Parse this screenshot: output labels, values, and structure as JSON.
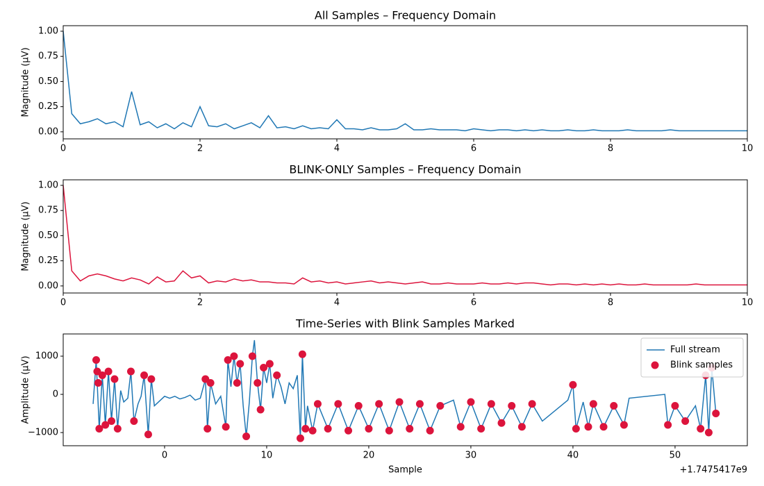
{
  "chart_data": [
    {
      "type": "line",
      "title": "All Samples – Frequency Domain",
      "ylabel": "Magnitude (µV)",
      "color": "#1f77b4",
      "xlim": [
        0,
        10
      ],
      "ylim": [
        -0.07,
        1.055
      ],
      "xticks": [
        0,
        2,
        4,
        6,
        8,
        10
      ],
      "yticks": [
        {
          "value": 0,
          "label": "0.00"
        },
        {
          "value": 0.25,
          "label": "0.25"
        },
        {
          "value": 0.5,
          "label": "0.50"
        },
        {
          "value": 0.75,
          "label": "0.75"
        },
        {
          "value": 1,
          "label": "1.00"
        }
      ],
      "x": [
        0,
        0.125,
        0.25,
        0.375,
        0.5,
        0.625,
        0.75,
        0.875,
        1,
        1.125,
        1.25,
        1.375,
        1.5,
        1.625,
        1.75,
        1.875,
        2,
        2.125,
        2.25,
        2.375,
        2.5,
        2.625,
        2.75,
        2.875,
        3,
        3.125,
        3.25,
        3.375,
        3.5,
        3.625,
        3.75,
        3.875,
        4,
        4.125,
        4.25,
        4.375,
        4.5,
        4.625,
        4.75,
        4.875,
        5,
        5.125,
        5.25,
        5.375,
        5.5,
        5.625,
        5.75,
        5.875,
        6,
        6.125,
        6.25,
        6.375,
        6.5,
        6.625,
        6.75,
        6.875,
        7,
        7.125,
        7.25,
        7.375,
        7.5,
        7.625,
        7.75,
        7.875,
        8,
        8.125,
        8.25,
        8.375,
        8.5,
        8.625,
        8.75,
        8.875,
        9,
        9.125,
        9.25,
        9.375,
        9.5,
        9.625,
        9.75,
        9.875,
        10
      ],
      "values": [
        1.0,
        0.18,
        0.08,
        0.1,
        0.13,
        0.08,
        0.1,
        0.05,
        0.4,
        0.07,
        0.1,
        0.04,
        0.08,
        0.03,
        0.09,
        0.05,
        0.25,
        0.06,
        0.05,
        0.08,
        0.03,
        0.06,
        0.09,
        0.04,
        0.16,
        0.04,
        0.05,
        0.03,
        0.06,
        0.03,
        0.04,
        0.03,
        0.12,
        0.03,
        0.03,
        0.02,
        0.04,
        0.02,
        0.02,
        0.03,
        0.08,
        0.02,
        0.02,
        0.03,
        0.02,
        0.02,
        0.02,
        0.01,
        0.03,
        0.02,
        0.01,
        0.02,
        0.02,
        0.01,
        0.02,
        0.01,
        0.02,
        0.01,
        0.01,
        0.02,
        0.01,
        0.01,
        0.02,
        0.01,
        0.01,
        0.01,
        0.02,
        0.01,
        0.01,
        0.01,
        0.01,
        0.02,
        0.01,
        0.01,
        0.01,
        0.01,
        0.01,
        0.01,
        0.01,
        0.01,
        0.01
      ]
    },
    {
      "type": "line",
      "title": "BLINK-ONLY Samples – Frequency Domain",
      "ylabel": "Magnitude (µV)",
      "color": "#dc143c",
      "xlim": [
        0,
        10
      ],
      "ylim": [
        -0.07,
        1.055
      ],
      "xticks": [
        0,
        2,
        4,
        6,
        8,
        10
      ],
      "yticks": [
        {
          "value": 0,
          "label": "0.00"
        },
        {
          "value": 0.25,
          "label": "0.25"
        },
        {
          "value": 0.5,
          "label": "0.50"
        },
        {
          "value": 0.75,
          "label": "0.75"
        },
        {
          "value": 1,
          "label": "1.00"
        }
      ],
      "x": [
        0,
        0.125,
        0.25,
        0.375,
        0.5,
        0.625,
        0.75,
        0.875,
        1,
        1.125,
        1.25,
        1.375,
        1.5,
        1.625,
        1.75,
        1.875,
        2,
        2.125,
        2.25,
        2.375,
        2.5,
        2.625,
        2.75,
        2.875,
        3,
        3.125,
        3.25,
        3.375,
        3.5,
        3.625,
        3.75,
        3.875,
        4,
        4.125,
        4.25,
        4.375,
        4.5,
        4.625,
        4.75,
        4.875,
        5,
        5.125,
        5.25,
        5.375,
        5.5,
        5.625,
        5.75,
        5.875,
        6,
        6.125,
        6.25,
        6.375,
        6.5,
        6.625,
        6.75,
        6.875,
        7,
        7.125,
        7.25,
        7.375,
        7.5,
        7.625,
        7.75,
        7.875,
        8,
        8.125,
        8.25,
        8.375,
        8.5,
        8.625,
        8.75,
        8.875,
        9,
        9.125,
        9.25,
        9.375,
        9.5,
        9.625,
        9.75,
        9.875,
        10
      ],
      "values": [
        1.0,
        0.15,
        0.05,
        0.1,
        0.12,
        0.1,
        0.07,
        0.05,
        0.08,
        0.06,
        0.02,
        0.09,
        0.04,
        0.05,
        0.15,
        0.08,
        0.1,
        0.03,
        0.05,
        0.04,
        0.07,
        0.05,
        0.06,
        0.04,
        0.04,
        0.03,
        0.03,
        0.02,
        0.08,
        0.04,
        0.05,
        0.03,
        0.04,
        0.02,
        0.03,
        0.04,
        0.05,
        0.03,
        0.04,
        0.03,
        0.02,
        0.03,
        0.04,
        0.02,
        0.02,
        0.03,
        0.02,
        0.02,
        0.02,
        0.03,
        0.02,
        0.02,
        0.03,
        0.02,
        0.03,
        0.03,
        0.02,
        0.01,
        0.02,
        0.02,
        0.01,
        0.02,
        0.01,
        0.02,
        0.01,
        0.02,
        0.01,
        0.01,
        0.02,
        0.01,
        0.01,
        0.01,
        0.01,
        0.01,
        0.02,
        0.01,
        0.01,
        0.01,
        0.01,
        0.01,
        0.01
      ]
    },
    {
      "type": "line",
      "title": "Time-Series with Blink Samples Marked",
      "xlabel": "Sample",
      "ylabel": "Amplitude (µV)",
      "x_offset_label": "+1.7475417e9",
      "xlim": [
        -9.93,
        57.08
      ],
      "ylim": [
        -1345,
        1582
      ],
      "xticks": [
        0,
        10,
        20,
        30,
        40,
        50
      ],
      "yticks": [
        {
          "value": -1000,
          "label": "−1000"
        },
        0,
        1000
      ],
      "legend": "upper right",
      "series": [
        {
          "name": "Full stream",
          "type": "line",
          "color": "#1f77b4",
          "x": [
            -7,
            -6.7,
            -6.4,
            -6.1,
            -5.8,
            -5.5,
            -5.2,
            -4.9,
            -4.6,
            -4.3,
            -4,
            -3.6,
            -3.3,
            -3,
            -2.6,
            -2.3,
            -2,
            -1.6,
            -1.3,
            -1,
            0,
            0.5,
            1,
            1.5,
            2,
            2.5,
            3,
            3.5,
            4,
            4.2,
            4.5,
            5,
            5.5,
            6,
            6.2,
            6.5,
            6.8,
            7.1,
            7.4,
            7.7,
            8,
            8.3,
            8.6,
            8.8,
            9.1,
            9.4,
            9.7,
            10,
            10.3,
            10.6,
            11,
            11.4,
            11.8,
            12.2,
            12.6,
            13,
            13.3,
            13.5,
            13.8,
            14,
            14.5,
            15,
            16,
            17,
            18,
            19,
            20,
            21,
            22,
            23,
            24,
            25,
            26,
            27,
            28.3,
            29,
            30,
            31,
            32,
            33,
            34,
            35,
            36,
            37,
            39.5,
            40,
            40.3,
            41,
            41.5,
            42,
            43,
            44,
            45,
            45.5,
            49,
            49.3,
            50,
            51,
            52,
            52.5,
            53,
            53.3,
            53.6,
            54
          ],
          "values": [
            -250,
            900,
            -900,
            500,
            -800,
            600,
            -700,
            400,
            -900,
            100,
            -200,
            -100,
            600,
            -700,
            -250,
            -50,
            500,
            -1050,
            400,
            -300,
            -50,
            -100,
            -50,
            -120,
            -80,
            -20,
            -150,
            -100,
            400,
            -900,
            300,
            -250,
            -50,
            -850,
            900,
            200,
            1000,
            300,
            800,
            -300,
            -1100,
            -200,
            1000,
            1420,
            300,
            -400,
            700,
            300,
            800,
            -100,
            500,
            200,
            -250,
            300,
            150,
            500,
            -1150,
            1050,
            -900,
            -300,
            -950,
            -250,
            -900,
            -250,
            -950,
            -300,
            -900,
            -250,
            -950,
            -200,
            -900,
            -250,
            -950,
            -300,
            -150,
            -850,
            -200,
            -900,
            -250,
            -750,
            -300,
            -850,
            -250,
            -700,
            -150,
            250,
            -900,
            -200,
            -850,
            -250,
            -850,
            -300,
            -800,
            -100,
            0,
            -800,
            -300,
            -700,
            -300,
            -900,
            500,
            -1000,
            700,
            -500
          ]
        },
        {
          "name": "Blink samples",
          "type": "scatter",
          "color": "#dc143c",
          "x": [
            -6.7,
            -6.6,
            -6.5,
            -6.4,
            -6.1,
            -5.8,
            -5.5,
            -5.2,
            -4.9,
            -4.6,
            -3.3,
            -3,
            -2,
            -1.6,
            -1.3,
            4,
            4.2,
            4.5,
            6,
            6.2,
            6.8,
            7.1,
            7.4,
            8,
            8.6,
            9.1,
            9.4,
            9.7,
            10.3,
            11,
            13.3,
            13.5,
            13.8,
            14.5,
            15,
            16,
            17,
            18,
            19,
            20,
            21,
            22,
            23,
            24,
            25,
            26,
            27,
            29,
            30,
            31,
            32,
            33,
            34,
            35,
            36,
            40,
            40.3,
            41.5,
            42,
            43,
            44,
            45,
            49.3,
            50,
            51,
            52.5,
            53,
            53.3,
            53.6,
            54
          ],
          "values": [
            900,
            600,
            300,
            -900,
            500,
            -800,
            600,
            -700,
            400,
            -900,
            600,
            -700,
            500,
            -1050,
            400,
            400,
            -900,
            300,
            -850,
            900,
            1000,
            300,
            800,
            -1100,
            1000,
            300,
            -400,
            700,
            800,
            500,
            -1150,
            1050,
            -900,
            -950,
            -250,
            -900,
            -250,
            -950,
            -300,
            -900,
            -250,
            -950,
            -200,
            -900,
            -250,
            -950,
            -300,
            -850,
            -200,
            -900,
            -250,
            -750,
            -300,
            -850,
            -250,
            250,
            -900,
            -850,
            -250,
            -850,
            -300,
            -800,
            -800,
            -300,
            -700,
            -900,
            500,
            -1000,
            700,
            -500
          ]
        }
      ]
    }
  ]
}
